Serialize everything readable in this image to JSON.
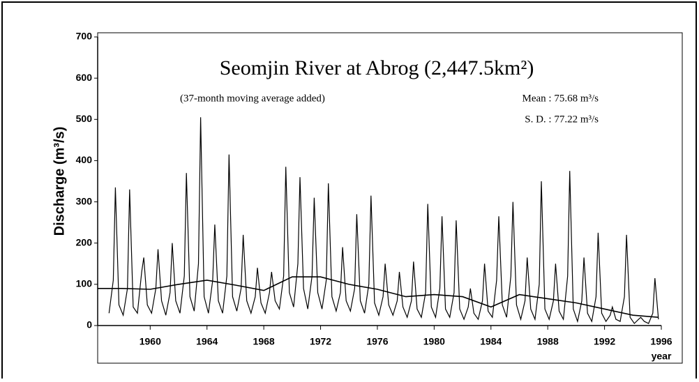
{
  "chart_data": {
    "type": "line",
    "title": "Seomjin River at Abrog (2,447.5km²)",
    "subtitle": "(37-month moving average added)",
    "annotations": [
      "Mean : 75.68 m³/s",
      "S. D. : 77.22 m³/s"
    ],
    "y_label": "Discharge (m³/s)",
    "x_label": "year",
    "xlim": [
      1956.3,
      1996
    ],
    "xticks": [
      1960,
      1964,
      1968,
      1972,
      1976,
      1980,
      1984,
      1988,
      1992,
      1996
    ],
    "ylim": [
      0,
      700
    ],
    "yticks": [
      0,
      100,
      200,
      300,
      400,
      500,
      600,
      700
    ],
    "grid": false,
    "series": [
      {
        "color": "#000000",
        "x": [
          1957.1,
          1957.4,
          1957.55,
          1957.8,
          1958.1,
          1958.4,
          1958.55,
          1958.8,
          1959.1,
          1959.4,
          1959.55,
          1959.8,
          1960.1,
          1960.4,
          1960.55,
          1960.8,
          1961.1,
          1961.4,
          1961.55,
          1961.8,
          1962.1,
          1962.4,
          1962.55,
          1962.8,
          1963.1,
          1963.4,
          1963.55,
          1963.8,
          1964.1,
          1964.4,
          1964.55,
          1964.8,
          1965.1,
          1965.4,
          1965.55,
          1965.8,
          1966.1,
          1966.4,
          1966.55,
          1966.8,
          1967.1,
          1967.4,
          1967.55,
          1967.8,
          1968.1,
          1968.4,
          1968.55,
          1968.8,
          1969.1,
          1969.4,
          1969.55,
          1969.8,
          1970.1,
          1970.4,
          1970.55,
          1970.8,
          1971.1,
          1971.4,
          1971.55,
          1971.8,
          1972.1,
          1972.4,
          1972.55,
          1972.8,
          1973.1,
          1973.4,
          1973.55,
          1973.8,
          1974.1,
          1974.4,
          1974.55,
          1974.8,
          1975.1,
          1975.4,
          1975.55,
          1975.8,
          1976.1,
          1976.4,
          1976.55,
          1976.8,
          1977.1,
          1977.4,
          1977.55,
          1977.8,
          1978.1,
          1978.4,
          1978.55,
          1978.8,
          1979.1,
          1979.4,
          1979.55,
          1979.8,
          1980.1,
          1980.4,
          1980.55,
          1980.8,
          1981.1,
          1981.4,
          1981.55,
          1981.8,
          1982.1,
          1982.4,
          1982.55,
          1982.8,
          1983.1,
          1983.4,
          1983.55,
          1983.8,
          1984.1,
          1984.4,
          1984.55,
          1984.8,
          1985.1,
          1985.4,
          1985.55,
          1985.8,
          1986.1,
          1986.4,
          1986.55,
          1986.8,
          1987.1,
          1987.4,
          1987.55,
          1987.8,
          1988.1,
          1988.4,
          1988.55,
          1988.8,
          1989.1,
          1989.4,
          1989.55,
          1989.8,
          1990.1,
          1990.4,
          1990.55,
          1990.8,
          1991.1,
          1991.4,
          1991.55,
          1991.8,
          1992.1,
          1992.4,
          1992.55,
          1992.8,
          1993.1,
          1993.4,
          1993.55,
          1993.8,
          1994.1,
          1994.4,
          1994.55,
          1994.8,
          1995.1,
          1995.4,
          1995.55,
          1995.8
        ],
        "values": [
          30,
          110,
          335,
          50,
          25,
          90,
          330,
          45,
          30,
          130,
          165,
          50,
          30,
          90,
          185,
          60,
          25,
          80,
          200,
          60,
          30,
          120,
          370,
          70,
          35,
          150,
          505,
          70,
          30,
          110,
          245,
          60,
          30,
          120,
          415,
          70,
          35,
          90,
          220,
          60,
          30,
          70,
          140,
          55,
          30,
          80,
          130,
          60,
          40,
          120,
          385,
          80,
          45,
          150,
          360,
          90,
          40,
          120,
          310,
          80,
          40,
          110,
          345,
          70,
          35,
          80,
          190,
          60,
          35,
          90,
          270,
          60,
          30,
          100,
          315,
          55,
          25,
          70,
          150,
          50,
          25,
          60,
          130,
          45,
          20,
          60,
          155,
          40,
          20,
          80,
          295,
          45,
          20,
          90,
          265,
          40,
          20,
          80,
          255,
          40,
          15,
          45,
          90,
          30,
          15,
          60,
          150,
          35,
          20,
          110,
          265,
          50,
          20,
          120,
          300,
          50,
          15,
          60,
          165,
          40,
          15,
          100,
          350,
          40,
          15,
          60,
          150,
          35,
          15,
          120,
          375,
          40,
          10,
          60,
          165,
          30,
          10,
          70,
          225,
          30,
          10,
          25,
          45,
          15,
          10,
          70,
          220,
          20,
          5,
          15,
          20,
          10,
          5,
          30,
          115,
          15
        ]
      },
      {
        "color": "#000000",
        "x": [
          1956.3,
          1958,
          1960,
          1962,
          1964,
          1966,
          1968,
          1970,
          1972,
          1974,
          1976,
          1978,
          1980,
          1982,
          1984,
          1986,
          1988,
          1990,
          1992,
          1994,
          1995.8
        ],
        "values": [
          90,
          90,
          88,
          100,
          110,
          98,
          85,
          118,
          118,
          100,
          88,
          70,
          75,
          70,
          45,
          75,
          65,
          55,
          40,
          25,
          20
        ]
      }
    ]
  }
}
